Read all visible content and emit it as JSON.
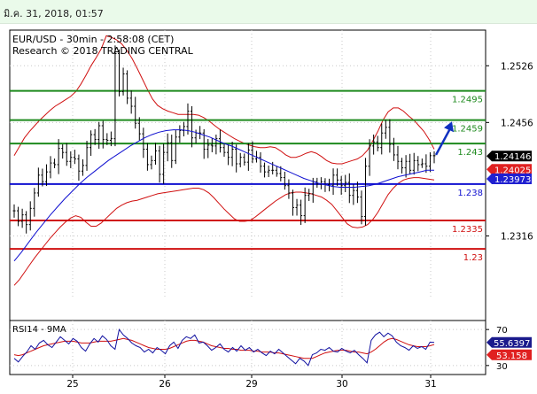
{
  "timestamp": "มิ.ค. 31, 2018, 01:57",
  "chart_data": {
    "type": "candlestick",
    "title": "EUR/USD - 30min - 2:58:08 (CET)",
    "subtitle": "Research © 2018 TRADING CENTRAL",
    "x_ticks": [
      "25",
      "26",
      "29",
      "30",
      "31"
    ],
    "y_ticks": [
      1.2526,
      1.2456,
      1.2316
    ],
    "ylim": [
      1.224,
      1.257
    ],
    "grid": true,
    "levels": [
      {
        "value": 1.2495,
        "label": "1.2495",
        "color": "#1e8a1e"
      },
      {
        "value": 1.2459,
        "label": "1.2459",
        "color": "#1e8a1e"
      },
      {
        "value": 1.243,
        "label": "1.243",
        "color": "#1e8a1e"
      },
      {
        "value": 1.238,
        "label": "1.238",
        "color": "#1010d0"
      },
      {
        "value": 1.2335,
        "label": "1.2335",
        "color": "#d01010"
      },
      {
        "value": 1.23,
        "label": "1.23",
        "color": "#d01010"
      }
    ],
    "price_labels": [
      {
        "value": 1.24146,
        "label": "1.24146",
        "bg": "#000000",
        "fg": "#ffffff"
      },
      {
        "value": 1.24025,
        "label": "1.24025",
        "bg": "#e02020",
        "fg": "#ffffff"
      },
      {
        "value": 1.23973,
        "label": "1.23973",
        "bg": "#2020d0",
        "fg": "#ffffff"
      }
    ],
    "close_series": [
      1.2347,
      1.2334,
      1.2342,
      1.233,
      1.235,
      1.2369,
      1.2391,
      1.2383,
      1.2395,
      1.2406,
      1.2404,
      1.2424,
      1.2419,
      1.2408,
      1.2413,
      1.2411,
      1.2396,
      1.2403,
      1.2425,
      1.2441,
      1.2435,
      1.2452,
      1.2435,
      1.2434,
      1.2436,
      1.2541,
      1.2494,
      1.2516,
      1.2486,
      1.2476,
      1.2455,
      1.2442,
      1.2423,
      1.2404,
      1.2409,
      1.2421,
      1.2392,
      1.2419,
      1.2431,
      1.2409,
      1.2438,
      1.2446,
      1.2451,
      1.247,
      1.2437,
      1.2443,
      1.2443,
      1.2423,
      1.2428,
      1.2427,
      1.2436,
      1.2425,
      1.2419,
      1.2413,
      1.2423,
      1.2405,
      1.2413,
      1.2407,
      1.2422,
      1.2411,
      1.2413,
      1.2402,
      1.2395,
      1.2397,
      1.2397,
      1.2393,
      1.2388,
      1.2378,
      1.2369,
      1.2351,
      1.2354,
      1.2341,
      1.2366,
      1.2368,
      1.2383,
      1.238,
      1.2383,
      1.2379,
      1.2378,
      1.2391,
      1.2385,
      1.2378,
      1.2382,
      1.2366,
      1.2372,
      1.2364,
      1.234,
      1.2402,
      1.2427,
      1.2432,
      1.2425,
      1.2443,
      1.245,
      1.2429,
      1.2416,
      1.2408,
      1.24,
      1.2408,
      1.2397,
      1.2409,
      1.2404,
      1.2405,
      1.2402,
      1.2415,
      1.2415
    ],
    "bollinger_upper": [
      1.2415,
      1.2426,
      1.2437,
      1.2445,
      1.2452,
      1.2459,
      1.2465,
      1.2471,
      1.2476,
      1.248,
      1.2484,
      1.2488,
      1.2494,
      1.2503,
      1.2514,
      1.2526,
      1.2536,
      1.2547,
      1.2563,
      1.2561,
      1.2558,
      1.2553,
      1.2545,
      1.2535,
      1.2523,
      1.251,
      1.2497,
      1.2485,
      1.2477,
      1.2473,
      1.247,
      1.2468,
      1.2466,
      1.2466,
      1.2466,
      1.2466,
      1.2465,
      1.2462,
      1.2458,
      1.2453,
      1.2448,
      1.2444,
      1.244,
      1.2436,
      1.2433,
      1.243,
      1.2428,
      1.2426,
      1.2425,
      1.2425,
      1.2426,
      1.2425,
      1.2421,
      1.2416,
      1.2413,
      1.2413,
      1.2415,
      1.2418,
      1.242,
      1.2418,
      1.2414,
      1.2409,
      1.2406,
      1.2405,
      1.2405,
      1.2407,
      1.2409,
      1.2411,
      1.2415,
      1.2422,
      1.2433,
      1.2445,
      1.2459,
      1.2469,
      1.2474,
      1.2474,
      1.247,
      1.2464,
      1.2459,
      1.2452,
      1.2445,
      1.2435,
      1.2423
    ],
    "bollinger_lower": [
      1.2255,
      1.2262,
      1.2271,
      1.228,
      1.2289,
      1.2297,
      1.2305,
      1.2313,
      1.232,
      1.2327,
      1.2333,
      1.2338,
      1.2341,
      1.2339,
      1.2333,
      1.2328,
      1.2328,
      1.2332,
      1.2338,
      1.2344,
      1.235,
      1.2354,
      1.2357,
      1.2359,
      1.236,
      1.2362,
      1.2364,
      1.2366,
      1.2368,
      1.2369,
      1.237,
      1.2371,
      1.2372,
      1.2373,
      1.2374,
      1.2375,
      1.2375,
      1.2373,
      1.2369,
      1.2363,
      1.2356,
      1.2349,
      1.2343,
      1.2337,
      1.2334,
      1.2334,
      1.2335,
      1.2339,
      1.2344,
      1.2349,
      1.2354,
      1.2359,
      1.2363,
      1.2367,
      1.2369,
      1.237,
      1.237,
      1.2369,
      1.2368,
      1.2366,
      1.2364,
      1.236,
      1.2355,
      1.2347,
      1.2339,
      1.2331,
      1.2327,
      1.2326,
      1.2327,
      1.233,
      1.2336,
      1.2345,
      1.2356,
      1.2367,
      1.2375,
      1.2381,
      1.2385,
      1.2387,
      1.2388,
      1.2388,
      1.2387,
      1.2386,
      1.2385
    ],
    "moving_average": [
      1.2285,
      1.2296,
      1.2308,
      1.232,
      1.2331,
      1.2342,
      1.2352,
      1.2362,
      1.2371,
      1.238,
      1.2388,
      1.2395,
      1.2402,
      1.2409,
      1.2415,
      1.2421,
      1.2427,
      1.2432,
      1.2437,
      1.2441,
      1.2444,
      1.2446,
      1.2447,
      1.2447,
      1.2446,
      1.2444,
      1.2441,
      1.2438,
      1.2434,
      1.243,
      1.2427,
      1.2423,
      1.2419,
      1.2415,
      1.2411,
      1.2407,
      1.2403,
      1.2399,
      1.2395,
      1.2391,
      1.2387,
      1.2384,
      1.2381,
      1.2379,
      1.2377,
      1.2376,
      1.2376,
      1.2376,
      1.2377,
      1.2378,
      1.238,
      1.2383,
      1.2386,
      1.2389,
      1.2391,
      1.2393,
      1.2395,
      1.2397,
      1.2397
    ],
    "forecast_arrow": {
      "from": 1.2416,
      "to": 1.2455
    },
    "rsi": {
      "label": "RSI14 - 9MA",
      "y_ticks": [
        70,
        30
      ],
      "ylim": [
        20,
        80
      ],
      "rsi_value": "55.6397",
      "ma_value": "53.158",
      "series": [
        38,
        34,
        40,
        45,
        52,
        48,
        55,
        58,
        53,
        50,
        56,
        62,
        58,
        54,
        60,
        57,
        50,
        46,
        54,
        60,
        56,
        63,
        59,
        52,
        48,
        70,
        64,
        60,
        55,
        52,
        50,
        45,
        48,
        44,
        50,
        47,
        43,
        52,
        56,
        49,
        58,
        62,
        60,
        64,
        55,
        56,
        52,
        47,
        50,
        54,
        48,
        45,
        50,
        46,
        52,
        47,
        50,
        45,
        48,
        44,
        41,
        46,
        43,
        48,
        44,
        40,
        36,
        32,
        38,
        35,
        30,
        42,
        44,
        48,
        47,
        50,
        46,
        45,
        49,
        46,
        44,
        47,
        42,
        38,
        33,
        58,
        64,
        67,
        62,
        66,
        63,
        56,
        52,
        50,
        47,
        52,
        49,
        51,
        48,
        56,
        55.6
      ],
      "ma_series": [
        42,
        41,
        42,
        44,
        46,
        48,
        50,
        52,
        53,
        54,
        55,
        56,
        57,
        57,
        57,
        56,
        55,
        55,
        55,
        56,
        57,
        57,
        57,
        57,
        58,
        59,
        60,
        59,
        58,
        56,
        54,
        52,
        50,
        49,
        48,
        48,
        48,
        49,
        51,
        53,
        55,
        57,
        58,
        58,
        57,
        56,
        54,
        52,
        51,
        50,
        49,
        49,
        48,
        48,
        47,
        47,
        47,
        46,
        46,
        45,
        45,
        45,
        44,
        44,
        43,
        42,
        41,
        40,
        39,
        38,
        38,
        38,
        40,
        42,
        44,
        45,
        46,
        47,
        47,
        47,
        46,
        45,
        45,
        44,
        43,
        45,
        48,
        52,
        56,
        59,
        60,
        59,
        57,
        55,
        53,
        52,
        51,
        51,
        51,
        52,
        53.2
      ]
    }
  }
}
